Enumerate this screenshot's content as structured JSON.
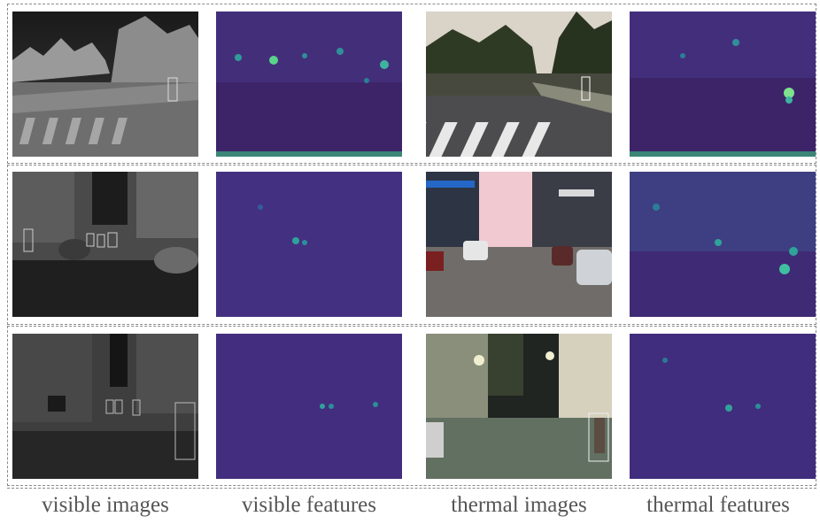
{
  "figure": {
    "columns": [
      {
        "key": "visible_images",
        "label": "visible images"
      },
      {
        "key": "visible_features",
        "label": "visible features"
      },
      {
        "key": "thermal_images",
        "label": "thermal images"
      },
      {
        "key": "thermal_features",
        "label": "thermal features"
      }
    ],
    "rows": [
      {
        "scene": "crosswalk-daytime"
      },
      {
        "scene": "city-street-evening"
      },
      {
        "scene": "city-street-night"
      }
    ],
    "colors": {
      "feature_dark": "#3b1d5e",
      "feature_mid": "#46337f",
      "feature_hot": "#4fd18a",
      "feature_warm": "#2a8b9a",
      "thermal_bg": "#5a5a5a",
      "frame": "#8a8a8a"
    },
    "icons": {
      "panel_type_photo": "photo-thumbnail",
      "panel_type_heatmap": "feature-heatmap"
    }
  }
}
